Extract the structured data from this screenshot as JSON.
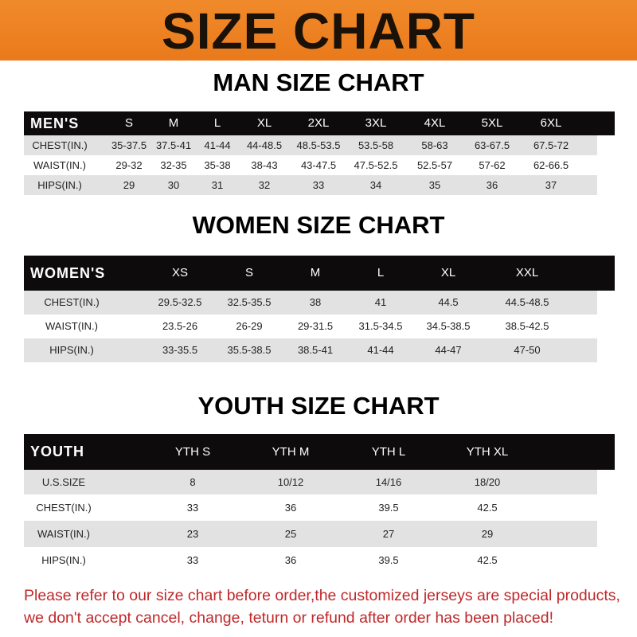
{
  "banner": {
    "title": "SIZE CHART",
    "color": "#ee7f22"
  },
  "men": {
    "title": "MAN SIZE CHART",
    "header": [
      "MEN'S",
      "S",
      "M",
      "L",
      "XL",
      "2XL",
      "3XL",
      "4XL",
      "5XL",
      "6XL"
    ],
    "rows": [
      [
        "CHEST(IN.)",
        "35-37.5",
        "37.5-41",
        "41-44",
        "44-48.5",
        "48.5-53.5",
        "53.5-58",
        "58-63",
        "63-67.5",
        "67.5-72"
      ],
      [
        "WAIST(IN.)",
        "29-32",
        "32-35",
        "35-38",
        "38-43",
        "43-47.5",
        "47.5-52.5",
        "52.5-57",
        "57-62",
        "62-66.5"
      ],
      [
        "HIPS(IN.)",
        "29",
        "30",
        "31",
        "32",
        "33",
        "34",
        "35",
        "36",
        "37"
      ]
    ]
  },
  "women": {
    "title": "WOMEN SIZE CHART",
    "header": [
      "WOMEN'S",
      "XS",
      "S",
      "M",
      "L",
      "XL",
      "XXL"
    ],
    "rows": [
      [
        "CHEST(IN.)",
        "29.5-32.5",
        "32.5-35.5",
        "38",
        "41",
        "44.5",
        "44.5-48.5"
      ],
      [
        "WAIST(IN.)",
        "23.5-26",
        "26-29",
        "29-31.5",
        "31.5-34.5",
        "34.5-38.5",
        "38.5-42.5"
      ],
      [
        "HIPS(IN.)",
        "33-35.5",
        "35.5-38.5",
        "38.5-41",
        "41-44",
        "44-47",
        "47-50"
      ]
    ]
  },
  "youth": {
    "title": "YOUTH SIZE CHART",
    "header": [
      "YOUTH",
      "YTH S",
      "YTH M",
      "YTH L",
      "YTH XL"
    ],
    "rows": [
      [
        "U.S.SIZE",
        "8",
        "10/12",
        "14/16",
        "18/20"
      ],
      [
        "CHEST(IN.)",
        "33",
        "36",
        "39.5",
        "42.5"
      ],
      [
        "WAIST(IN.)",
        "23",
        "25",
        "27",
        "29"
      ],
      [
        "HIPS(IN.)",
        "33",
        "36",
        "39.5",
        "42.5"
      ]
    ]
  },
  "note": {
    "line1": "Please refer to our size chart before order,the customized jerseys are special products,",
    "line2": "we don't accept cancel, change, teturn or refund after order has been placed!",
    "color": "#c0282a"
  }
}
